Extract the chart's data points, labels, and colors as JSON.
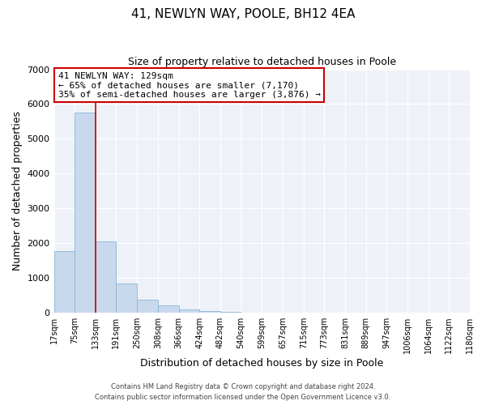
{
  "title": "41, NEWLYN WAY, POOLE, BH12 4EA",
  "subtitle": "Size of property relative to detached houses in Poole",
  "xlabel": "Distribution of detached houses by size in Poole",
  "ylabel": "Number of detached properties",
  "bin_labels": [
    "17sqm",
    "75sqm",
    "133sqm",
    "191sqm",
    "250sqm",
    "308sqm",
    "366sqm",
    "424sqm",
    "482sqm",
    "540sqm",
    "599sqm",
    "657sqm",
    "715sqm",
    "773sqm",
    "831sqm",
    "889sqm",
    "947sqm",
    "1006sqm",
    "1064sqm",
    "1122sqm",
    "1180sqm"
  ],
  "bar_values": [
    1780,
    5750,
    2050,
    830,
    370,
    210,
    95,
    50,
    20,
    10,
    5,
    0,
    0,
    0,
    0,
    0,
    0,
    0,
    0,
    0
  ],
  "bar_color": "#c8d9ee",
  "bar_edge_color": "#8ab4d4",
  "property_line_x": 133,
  "property_line_color": "#cc0000",
  "annotation_text": "41 NEWLYN WAY: 129sqm\n← 65% of detached houses are smaller (7,170)\n35% of semi-detached houses are larger (3,876) →",
  "annotation_box_edge_color": "#cc0000",
  "ylim": [
    0,
    7000
  ],
  "yticks": [
    0,
    1000,
    2000,
    3000,
    4000,
    5000,
    6000,
    7000
  ],
  "footer_line1": "Contains HM Land Registry data © Crown copyright and database right 2024.",
  "footer_line2": "Contains public sector information licensed under the Open Government Licence v3.0.",
  "background_color": "#ffffff",
  "plot_bg_color": "#eef2f8",
  "grid_color": "#ffffff",
  "bin_edges": [
    17,
    75,
    133,
    191,
    250,
    308,
    366,
    424,
    482,
    540,
    599,
    657,
    715,
    773,
    831,
    889,
    947,
    1006,
    1064,
    1122,
    1180
  ]
}
